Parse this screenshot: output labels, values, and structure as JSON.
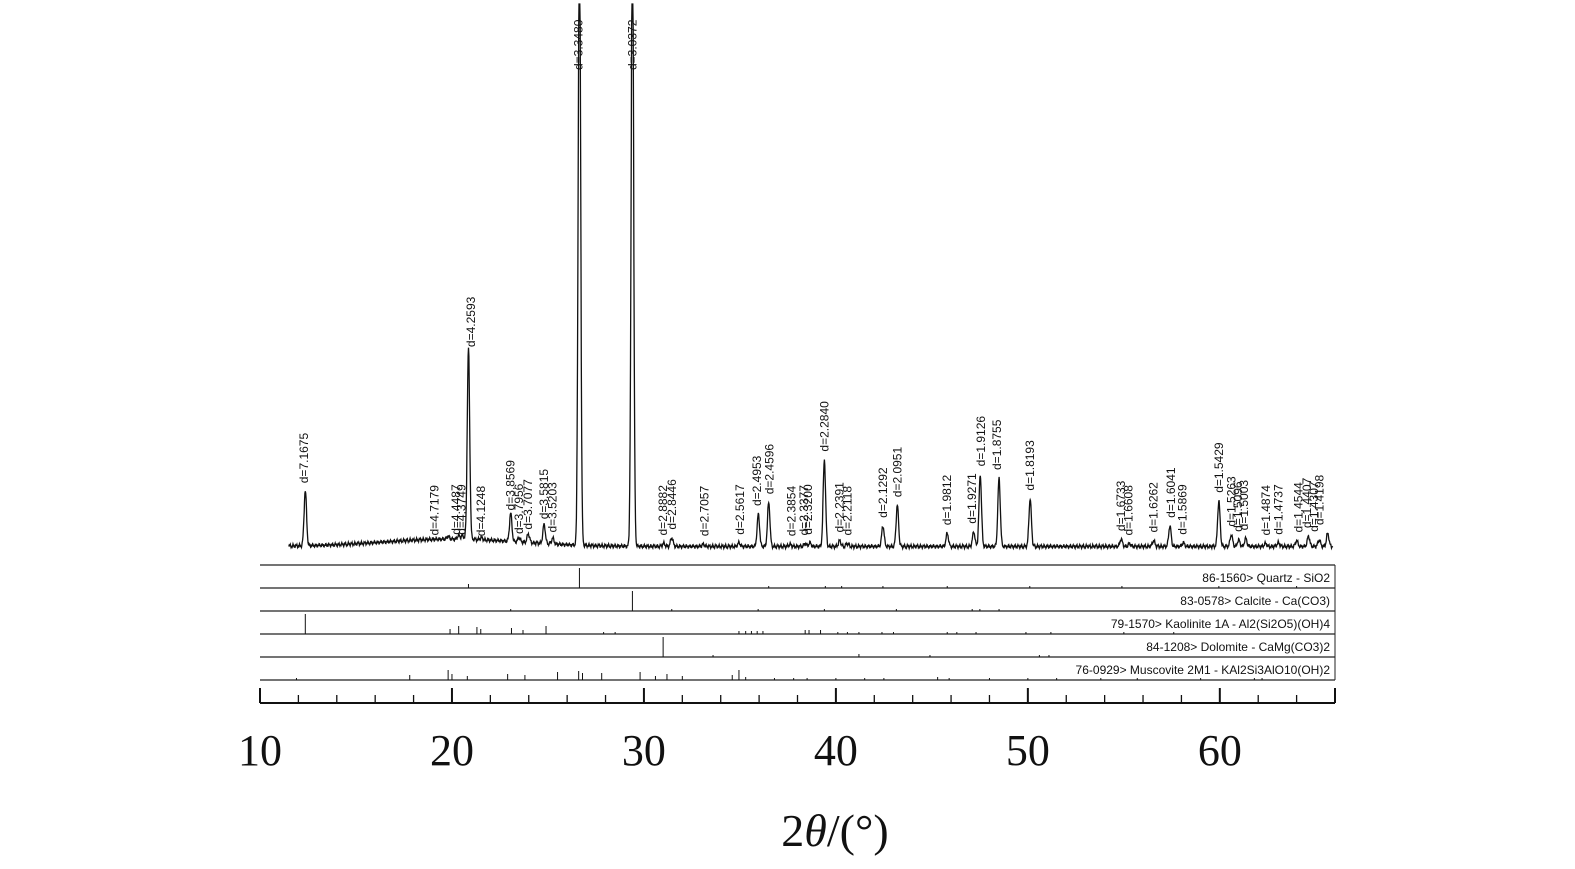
{
  "chart_data": {
    "type": "line",
    "xlabel_parts": [
      "2",
      "θ",
      "/(°)"
    ],
    "xlim": [
      10,
      66
    ],
    "x_ticks": [
      10,
      20,
      30,
      40,
      50,
      60
    ],
    "x_tick_labels": [
      "10",
      "20",
      "30",
      "40",
      "50",
      "60"
    ],
    "grid": false,
    "legend": "none",
    "pattern": {
      "background": 13,
      "max_intensity": 750,
      "peaks": [
        {
          "x": 12.36,
          "h": 75,
          "label": "d=7.1675",
          "lx": 12.3
        },
        {
          "x": 19.8,
          "h": 4,
          "label": "d=4.7179",
          "lx": 19.1
        },
        {
          "x": 20.35,
          "h": 5,
          "label": "d=4.4487",
          "lx": 20.2
        },
        {
          "x": 20.55,
          "h": 5,
          "label": "d=4.3749",
          "lx": 20.5
        },
        {
          "x": 20.86,
          "h": 260,
          "label": "d=4.2593",
          "lx": 21.0
        },
        {
          "x": 21.52,
          "h": 3,
          "label": "d=4.1248",
          "lx": 21.5
        },
        {
          "x": 23.06,
          "h": 38,
          "label": "d=3.8569",
          "lx": 23.05
        },
        {
          "x": 23.5,
          "h": 6,
          "label": "d=3.7956",
          "lx": 23.5
        },
        {
          "x": 23.98,
          "h": 12,
          "label": "d=3.7077",
          "lx": 23.95
        },
        {
          "x": 24.8,
          "h": 26,
          "label": "d=3.5815",
          "lx": 24.8
        },
        {
          "x": 25.25,
          "h": 8,
          "label": "d=3.5203",
          "lx": 25.25
        },
        {
          "x": 26.64,
          "h": 860,
          "label": "d=3.3480",
          "lx": 26.6
        },
        {
          "x": 29.4,
          "h": 860,
          "label": "d=3.0372",
          "lx": 29.4
        },
        {
          "x": 31.03,
          "h": 4,
          "label": "d=2.8882",
          "lx": 31.0
        },
        {
          "x": 31.45,
          "h": 12,
          "label": "d=2.8446",
          "lx": 31.45
        },
        {
          "x": 33.1,
          "h": 3,
          "label": "d=2.7057",
          "lx": 33.15
        },
        {
          "x": 34.95,
          "h": 5,
          "label": "d=2.5617",
          "lx": 35.0
        },
        {
          "x": 35.96,
          "h": 44,
          "label": "d=2.4953",
          "lx": 35.9
        },
        {
          "x": 36.5,
          "h": 60,
          "label": "d=2.4596",
          "lx": 36.55
        },
        {
          "x": 37.6,
          "h": 3,
          "label": "d=2.3854",
          "lx": 37.7
        },
        {
          "x": 38.4,
          "h": 4,
          "label": "d=2.3377",
          "lx": 38.35
        },
        {
          "x": 38.65,
          "h": 5,
          "label": "d=2.3200",
          "lx": 38.55
        },
        {
          "x": 39.4,
          "h": 118,
          "label": "d=2.2840",
          "lx": 39.4
        },
        {
          "x": 40.2,
          "h": 8,
          "label": "d=2.2391",
          "lx": 40.2
        },
        {
          "x": 40.6,
          "h": 4,
          "label": "d=2.2118",
          "lx": 40.6
        },
        {
          "x": 42.45,
          "h": 28,
          "label": "d=2.1292",
          "lx": 42.45
        },
        {
          "x": 43.2,
          "h": 56,
          "label": "d=2.0951",
          "lx": 43.2
        },
        {
          "x": 45.8,
          "h": 18,
          "label": "d=1.9812",
          "lx": 45.8
        },
        {
          "x": 47.18,
          "h": 20,
          "label": "d=1.9271",
          "lx": 47.1
        },
        {
          "x": 47.52,
          "h": 98,
          "label": "d=1.9126",
          "lx": 47.55
        },
        {
          "x": 48.5,
          "h": 93,
          "label": "d=1.8755",
          "lx": 48.4
        },
        {
          "x": 50.12,
          "h": 65,
          "label": "d=1.8193",
          "lx": 50.1
        },
        {
          "x": 54.86,
          "h": 10,
          "label": "d=1.6733",
          "lx": 54.85
        },
        {
          "x": 55.3,
          "h": 4,
          "label": "d=1.6608",
          "lx": 55.25
        },
        {
          "x": 56.55,
          "h": 8,
          "label": "d=1.6262",
          "lx": 56.55
        },
        {
          "x": 57.4,
          "h": 28,
          "label": "d=1.6041",
          "lx": 57.45
        },
        {
          "x": 58.1,
          "h": 5,
          "label": "d=1.5869",
          "lx": 58.05
        },
        {
          "x": 59.95,
          "h": 62,
          "label": "d=1.5429",
          "lx": 59.95
        },
        {
          "x": 60.6,
          "h": 16,
          "label": "d=1.5263",
          "lx": 60.6
        },
        {
          "x": 60.98,
          "h": 9,
          "label": "d=1.5096",
          "lx": 60.95
        },
        {
          "x": 61.35,
          "h": 11,
          "label": "d=1.5003",
          "lx": 61.25
        },
        {
          "x": 62.38,
          "h": 4,
          "label": "d=1.4874",
          "lx": 62.4
        },
        {
          "x": 63.05,
          "h": 5,
          "label": "d=1.4737",
          "lx": 63.05
        },
        {
          "x": 64.0,
          "h": 8,
          "label": "d=1.4544",
          "lx": 64.1
        },
        {
          "x": 64.62,
          "h": 14,
          "label": "d=1.4407",
          "lx": 64.55
        },
        {
          "x": 65.18,
          "h": 9,
          "label": "d=1.4307",
          "lx": 64.9
        },
        {
          "x": 65.62,
          "h": 18,
          "label": "d=1.4198",
          "lx": 65.2
        }
      ]
    },
    "phases": [
      {
        "label": "86-1560> Quartz - SiO2",
        "sticks": [
          [
            20.86,
            4
          ],
          [
            26.64,
            20
          ],
          [
            36.5,
            1
          ],
          [
            39.45,
            1
          ],
          [
            40.3,
            1
          ],
          [
            42.45,
            1
          ],
          [
            45.8,
            1
          ],
          [
            50.1,
            1
          ],
          [
            54.9,
            1
          ],
          [
            59.95,
            1
          ],
          [
            64.0,
            1
          ]
        ]
      },
      {
        "label": "83-0578> Calcite - Ca(CO3)",
        "sticks": [
          [
            23.06,
            1
          ],
          [
            29.4,
            20
          ],
          [
            31.45,
            1
          ],
          [
            35.95,
            1
          ],
          [
            39.4,
            1
          ],
          [
            43.15,
            1
          ],
          [
            47.1,
            1
          ],
          [
            47.5,
            1
          ],
          [
            48.5,
            1
          ]
        ]
      },
      {
        "label": "79-1570> Kaolinite 1A - Al2(Si2O5)(OH)4",
        "sticks": [
          [
            12.36,
            20
          ],
          [
            19.9,
            5
          ],
          [
            20.35,
            8
          ],
          [
            21.3,
            7
          ],
          [
            21.5,
            5
          ],
          [
            23.1,
            6
          ],
          [
            23.7,
            4
          ],
          [
            24.9,
            8
          ],
          [
            27.9,
            2
          ],
          [
            28.5,
            2
          ],
          [
            34.95,
            3
          ],
          [
            35.3,
            3
          ],
          [
            35.6,
            3
          ],
          [
            35.9,
            3
          ],
          [
            36.2,
            3
          ],
          [
            38.4,
            4
          ],
          [
            38.6,
            4
          ],
          [
            39.2,
            4
          ],
          [
            40.1,
            2
          ],
          [
            40.6,
            2
          ],
          [
            41.2,
            2
          ],
          [
            42.4,
            2
          ],
          [
            43.0,
            2
          ],
          [
            45.8,
            2
          ],
          [
            46.3,
            2
          ],
          [
            47.3,
            2
          ],
          [
            49.9,
            2
          ],
          [
            51.2,
            2
          ],
          [
            55.0,
            2
          ],
          [
            57.6,
            2
          ]
        ]
      },
      {
        "label": "84-1208> Dolomite - CaMg(CO3)2",
        "sticks": [
          [
            31.0,
            20
          ],
          [
            33.6,
            1
          ],
          [
            41.2,
            3
          ],
          [
            44.9,
            1
          ],
          [
            50.6,
            2
          ],
          [
            51.1,
            2
          ]
        ]
      },
      {
        "label": "76-0929> Muscovite 2M1 - KAl2Si3AlO10(OH)2",
        "sticks": [
          [
            11.9,
            1
          ],
          [
            17.8,
            5
          ],
          [
            19.8,
            10
          ],
          [
            20.0,
            6
          ],
          [
            20.8,
            4
          ],
          [
            22.9,
            6
          ],
          [
            23.8,
            5
          ],
          [
            25.5,
            8
          ],
          [
            26.6,
            9
          ],
          [
            26.8,
            7
          ],
          [
            27.8,
            7
          ],
          [
            29.8,
            8
          ],
          [
            30.6,
            4
          ],
          [
            31.2,
            6
          ],
          [
            32.0,
            4
          ],
          [
            34.6,
            5
          ],
          [
            34.95,
            10
          ],
          [
            35.3,
            3
          ],
          [
            36.8,
            2
          ],
          [
            37.8,
            2
          ],
          [
            38.5,
            2
          ],
          [
            40.0,
            2
          ],
          [
            41.5,
            2
          ],
          [
            42.5,
            2
          ],
          [
            45.3,
            3
          ],
          [
            45.9,
            2
          ],
          [
            48.0,
            2
          ],
          [
            50.0,
            2
          ],
          [
            51.5,
            2
          ],
          [
            53.8,
            2
          ],
          [
            55.7,
            2
          ],
          [
            59.0,
            2
          ],
          [
            61.8,
            2
          ],
          [
            62.2,
            2
          ]
        ]
      }
    ]
  }
}
